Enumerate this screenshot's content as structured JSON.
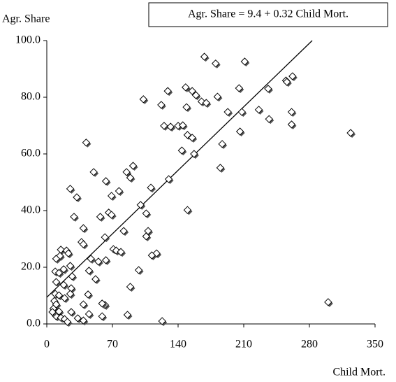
{
  "chart_data": {
    "type": "scatter",
    "annotation": "Agr. Share = 9.4 + 0.32 Child Mort.",
    "x_label": "Child Mort.",
    "y_label": "Agr. Share",
    "xlim": [
      0,
      350
    ],
    "xticks": [
      0,
      70,
      140,
      210,
      280,
      350
    ],
    "ylim": [
      0,
      100
    ],
    "yticks": [
      {
        "value": 0,
        "label": "0.0"
      },
      {
        "value": 20,
        "label": "20.0"
      },
      {
        "value": 40,
        "label": "40.0"
      },
      {
        "value": 60,
        "label": "60.0"
      },
      {
        "value": 80,
        "label": "80.0"
      },
      {
        "value": 100,
        "label": "100.0"
      }
    ],
    "grid": false,
    "series": [
      {
        "color": "#ffffff",
        "x": [
          168,
          180,
          211,
          262,
          255,
          256,
          236,
          205,
          148,
          155,
          129,
          159,
          182,
          103,
          165,
          170,
          149,
          122,
          208,
          193,
          226,
          261,
          237,
          125,
          132,
          140,
          145,
          261,
          150,
          155,
          206,
          324,
          187,
          144,
          42,
          157,
          185,
          92,
          50,
          85,
          89,
          130,
          63,
          25,
          32,
          69,
          77,
          111,
          100,
          106,
          150,
          66,
          69,
          57,
          29,
          39,
          108,
          82,
          106,
          62,
          37,
          39,
          71,
          74,
          79,
          117,
          112,
          15,
          21,
          23,
          14,
          10,
          47,
          55,
          63,
          25,
          18,
          9,
          13,
          45,
          98,
          52,
          27,
          10,
          18,
          26,
          89,
          25,
          44,
          9,
          13,
          19,
          8,
          10,
          39,
          62,
          59,
          300,
          7,
          13,
          45,
          86,
          59,
          10,
          15,
          33,
          19,
          39,
          123,
          22,
          6,
          26
        ],
        "values": [
          94.3,
          91.9,
          92.6,
          87.4,
          85.9,
          85.4,
          83,
          83.2,
          83.5,
          82.2,
          82.2,
          80.7,
          80.2,
          79.3,
          78.5,
          78,
          76.5,
          77.3,
          74.8,
          74.8,
          75.6,
          74.8,
          72.3,
          69.9,
          69.6,
          69.9,
          70.1,
          70.4,
          66.7,
          65.7,
          67.9,
          67.4,
          63.5,
          61.2,
          64,
          60,
          55.1,
          55.8,
          53.6,
          53.6,
          51.6,
          51.1,
          50.4,
          47.7,
          44.7,
          45.2,
          46.9,
          48.1,
          42,
          39,
          40.2,
          39.3,
          38.5,
          37.8,
          37.8,
          33.8,
          32.8,
          32.8,
          30.9,
          30.6,
          28.9,
          28.1,
          26.4,
          25.9,
          25.4,
          24.9,
          24.2,
          26.2,
          25.9,
          24.9,
          24,
          23,
          23,
          22,
          22.5,
          20.5,
          19.3,
          18.5,
          18,
          18.8,
          19,
          15.8,
          16.8,
          14.8,
          13.8,
          12.6,
          13.1,
          10.6,
          10.4,
          10.6,
          10.1,
          9.1,
          8.1,
          6.9,
          6.9,
          6.7,
          7.2,
          7.7,
          5.4,
          4.4,
          3.5,
          3.2,
          2.7,
          2.7,
          2.2,
          2,
          1.7,
          1.2,
          1,
          0.7,
          4.2,
          4.2
        ]
      }
    ],
    "trendline": {
      "color": "#000000",
      "x": [
        0,
        283
      ],
      "values": [
        9.4,
        100
      ]
    }
  }
}
